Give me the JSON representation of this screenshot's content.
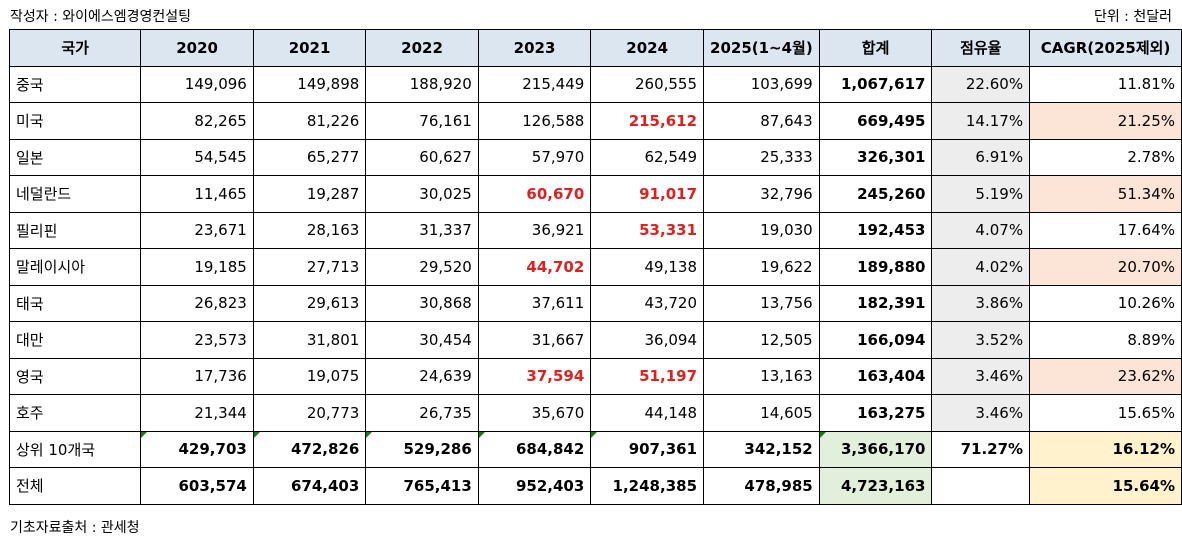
{
  "author": "작성자 : 와이에스엠경영컨설팅",
  "unit": "단위 : 천달러",
  "source": "기초자료출처 : 관세청",
  "headers": [
    "국가",
    "2020",
    "2021",
    "2022",
    "2023",
    "2024",
    "2025(1~4월)",
    "합계",
    "점유율",
    "CAGR(2025제외)"
  ],
  "rows": [
    {
      "country": "중국",
      "cells": [
        "149,096",
        "149,898",
        "188,920",
        "215,449",
        "260,555",
        "103,699"
      ],
      "total": "1,067,617",
      "share": "22.60%",
      "cagr": "11.81%",
      "red": [],
      "cagr_highlight": false
    },
    {
      "country": "미국",
      "cells": [
        "82,265",
        "81,226",
        "76,161",
        "126,588",
        "215,612",
        "87,643"
      ],
      "total": "669,495",
      "share": "14.17%",
      "cagr": "21.25%",
      "red": [
        4
      ],
      "cagr_highlight": true
    },
    {
      "country": "일본",
      "cells": [
        "54,545",
        "65,277",
        "60,627",
        "57,970",
        "62,549",
        "25,333"
      ],
      "total": "326,301",
      "share": "6.91%",
      "cagr": "2.78%",
      "red": [],
      "cagr_highlight": false
    },
    {
      "country": "네덜란드",
      "cells": [
        "11,465",
        "19,287",
        "30,025",
        "60,670",
        "91,017",
        "32,796"
      ],
      "total": "245,260",
      "share": "5.19%",
      "cagr": "51.34%",
      "red": [
        3,
        4
      ],
      "cagr_highlight": true
    },
    {
      "country": "필리핀",
      "cells": [
        "23,671",
        "28,163",
        "31,337",
        "36,921",
        "53,331",
        "19,030"
      ],
      "total": "192,453",
      "share": "4.07%",
      "cagr": "17.64%",
      "red": [
        4
      ],
      "cagr_highlight": false
    },
    {
      "country": "말레이시아",
      "cells": [
        "19,185",
        "27,713",
        "29,520",
        "44,702",
        "49,138",
        "19,622"
      ],
      "total": "189,880",
      "share": "4.02%",
      "cagr": "20.70%",
      "red": [
        3
      ],
      "cagr_highlight": true
    },
    {
      "country": "태국",
      "cells": [
        "26,823",
        "29,613",
        "30,868",
        "37,611",
        "43,720",
        "13,756"
      ],
      "total": "182,391",
      "share": "3.86%",
      "cagr": "10.26%",
      "red": [],
      "cagr_highlight": false
    },
    {
      "country": "대만",
      "cells": [
        "23,573",
        "31,801",
        "30,454",
        "31,667",
        "36,094",
        "12,505"
      ],
      "total": "166,094",
      "share": "3.52%",
      "cagr": "8.89%",
      "red": [],
      "cagr_highlight": false
    },
    {
      "country": "영국",
      "cells": [
        "17,736",
        "19,075",
        "24,639",
        "37,594",
        "51,197",
        "13,163"
      ],
      "total": "163,404",
      "share": "3.46%",
      "cagr": "23.62%",
      "red": [
        3,
        4
      ],
      "cagr_highlight": true
    },
    {
      "country": "호주",
      "cells": [
        "21,344",
        "20,773",
        "26,735",
        "35,670",
        "44,148",
        "14,605"
      ],
      "total": "163,275",
      "share": "3.46%",
      "cagr": "15.65%",
      "red": [],
      "cagr_highlight": false
    }
  ],
  "summary": [
    {
      "country": "상위 10개국",
      "cells": [
        "429,703",
        "472,826",
        "529,286",
        "684,842",
        "907,361",
        "342,152"
      ],
      "total": "3,366,170",
      "share": "71.27%",
      "cagr": "16.12%"
    },
    {
      "country": "전체",
      "cells": [
        "603,574",
        "674,403",
        "765,413",
        "952,403",
        "1,248,385",
        "478,985"
      ],
      "total": "4,723,163",
      "share": "",
      "cagr": "15.64%"
    }
  ]
}
